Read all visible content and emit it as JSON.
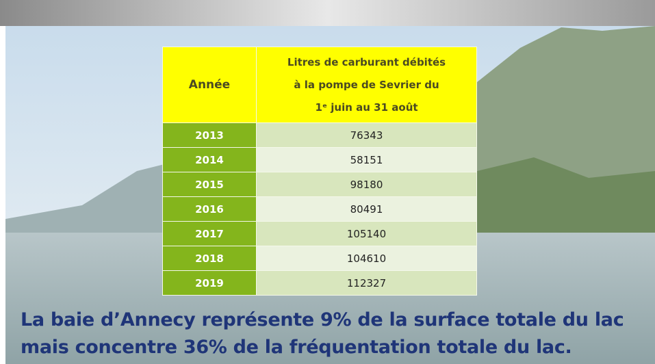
{
  "table": {
    "header": {
      "year": "Année",
      "value_lines": [
        "Litres de carburant débités",
        "à la pompe de Sevrier du",
        "1ᵉ juin au 31 août"
      ]
    },
    "rows": [
      [
        "2013",
        76343
      ],
      [
        "2014",
        58151
      ],
      [
        "2015",
        98180
      ],
      [
        "2016",
        80491
      ],
      [
        "2017",
        105140
      ],
      [
        "2018",
        104610
      ],
      [
        "2019",
        112327
      ]
    ]
  },
  "caption": [
    "La baie d’Annecy représente 9% de la surface totale du lac",
    "mais concentre 36% de la fréquentation totale du lac."
  ]
}
